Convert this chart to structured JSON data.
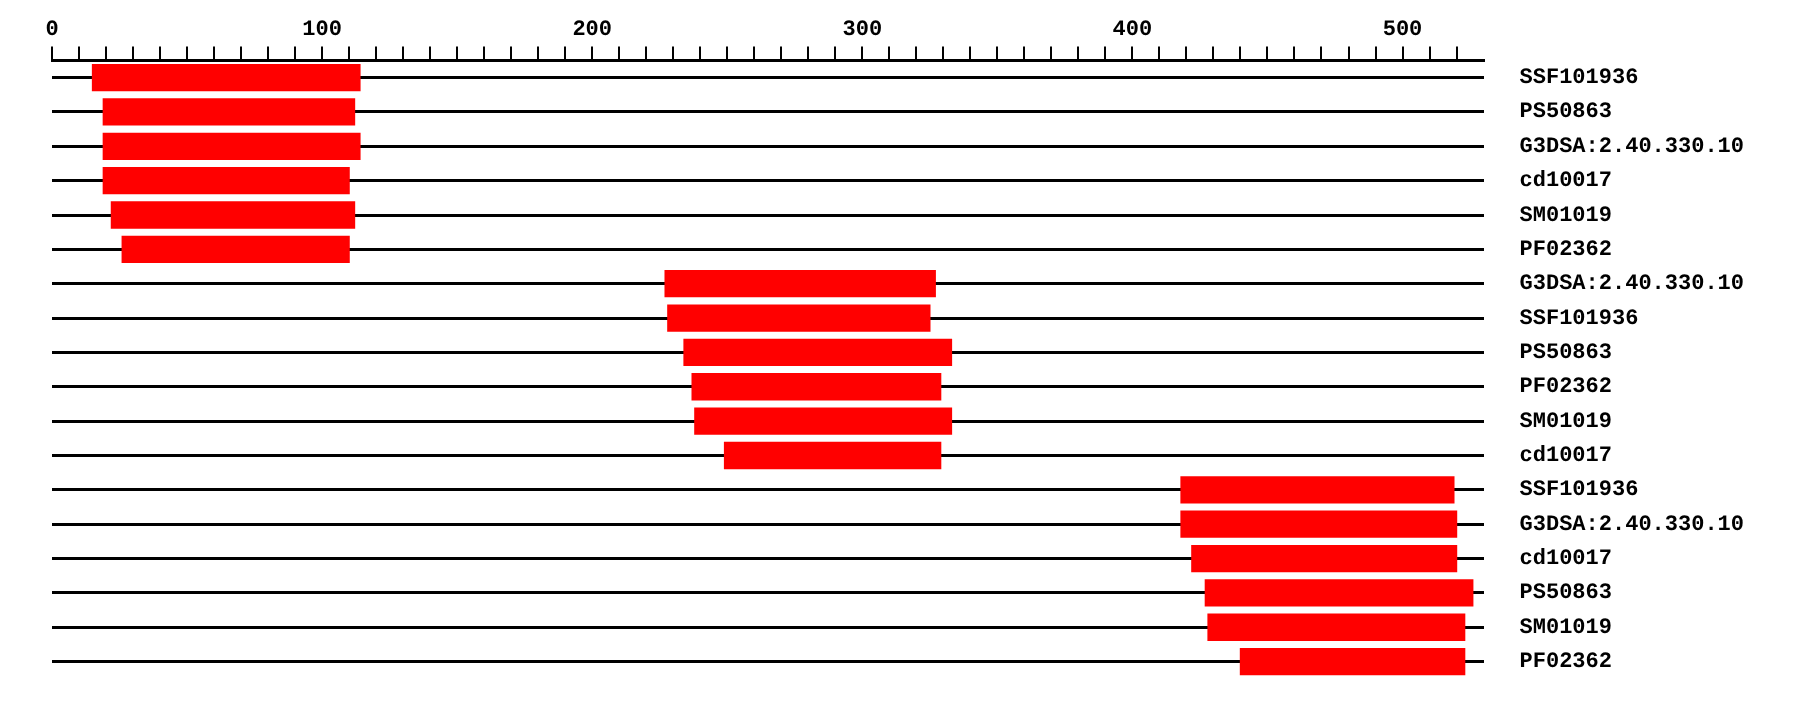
{
  "chart_data": {
    "type": "bar",
    "orientation": "horizontal",
    "categories": [
      "SSF101936",
      "PS50863",
      "G3DSA:2.40.330.10",
      "cd10017",
      "SM01019",
      "PF02362",
      "G3DSA:2.40.330.10",
      "SSF101936",
      "PS50863",
      "PF02362",
      "SM01019",
      "cd10017",
      "SSF101936",
      "G3DSA:2.40.330.10",
      "cd10017",
      "PS50863",
      "SM01019",
      "PF02362"
    ],
    "base": [
      15,
      19,
      19,
      19,
      22,
      26,
      227,
      228,
      234,
      237,
      238,
      249,
      418,
      418,
      422,
      427,
      428,
      440
    ],
    "values": [
      99,
      93,
      95,
      91,
      90,
      84,
      100,
      97,
      99,
      92,
      95,
      80,
      101,
      102,
      98,
      99,
      95,
      83
    ],
    "color": "#ff0000",
    "xlim": [
      0,
      530
    ],
    "xticks": [
      0,
      {
        "value": 10,
        "label": null
      },
      {
        "value": 20,
        "label": null
      },
      {
        "value": 30,
        "label": null
      },
      {
        "value": 40,
        "label": null
      },
      {
        "value": 50,
        "label": null
      },
      {
        "value": 60,
        "label": null
      },
      {
        "value": 70,
        "label": null
      },
      {
        "value": 80,
        "label": null
      },
      {
        "value": 90,
        "label": null
      },
      100,
      {
        "value": 110,
        "label": null
      },
      {
        "value": 120,
        "label": null
      },
      {
        "value": 130,
        "label": null
      },
      {
        "value": 140,
        "label": null
      },
      {
        "value": 150,
        "label": null
      },
      {
        "value": 160,
        "label": null
      },
      {
        "value": 170,
        "label": null
      },
      {
        "value": 180,
        "label": null
      },
      {
        "value": 190,
        "label": null
      },
      200,
      {
        "value": 210,
        "label": null
      },
      {
        "value": 220,
        "label": null
      },
      {
        "value": 230,
        "label": null
      },
      {
        "value": 240,
        "label": null
      },
      {
        "value": 250,
        "label": null
      },
      {
        "value": 260,
        "label": null
      },
      {
        "value": 270,
        "label": null
      },
      {
        "value": 280,
        "label": null
      },
      {
        "value": 290,
        "label": null
      },
      300,
      {
        "value": 310,
        "label": null
      },
      {
        "value": 320,
        "label": null
      },
      {
        "value": 330,
        "label": null
      },
      {
        "value": 340,
        "label": null
      },
      {
        "value": 350,
        "label": null
      },
      {
        "value": 360,
        "label": null
      },
      {
        "value": 370,
        "label": null
      },
      {
        "value": 380,
        "label": null
      },
      {
        "value": 390,
        "label": null
      },
      400,
      {
        "value": 410,
        "label": null
      },
      {
        "value": 420,
        "label": null
      },
      {
        "value": 430,
        "label": null
      },
      {
        "value": 440,
        "label": null
      },
      {
        "value": 450,
        "label": null
      },
      {
        "value": 460,
        "label": null
      },
      {
        "value": 470,
        "label": null
      },
      {
        "value": 480,
        "label": null
      },
      {
        "value": 490,
        "label": null
      },
      500,
      {
        "value": 510,
        "label": null
      },
      {
        "value": 520,
        "label": null
      }
    ],
    "grid": "y",
    "legend": false
  }
}
